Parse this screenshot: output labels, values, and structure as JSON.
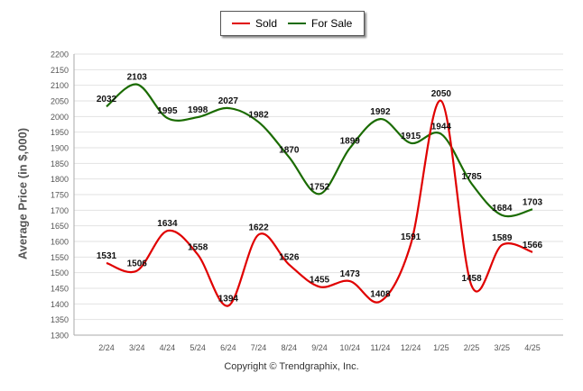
{
  "chart_data": {
    "type": "line",
    "categories": [
      "2/24",
      "3/24",
      "4/24",
      "5/24",
      "6/24",
      "7/24",
      "8/24",
      "9/24",
      "10/24",
      "11/24",
      "12/24",
      "1/25",
      "2/25",
      "3/25",
      "4/25"
    ],
    "series": [
      {
        "name": "Sold",
        "color": "#e00000",
        "values": [
          1531,
          1506,
          1634,
          1558,
          1394,
          1622,
          1526,
          1455,
          1473,
          1408,
          1591,
          2050,
          1458,
          1589,
          1566
        ]
      },
      {
        "name": "For Sale",
        "color": "#1a6b00",
        "values": [
          2032,
          2103,
          1995,
          1998,
          2027,
          1982,
          1870,
          1752,
          1899,
          1992,
          1915,
          1944,
          1785,
          1684,
          1703
        ]
      }
    ],
    "ylabel": "Average Price (in $,000)",
    "ylim": [
      1300,
      2200
    ],
    "yticks": [
      1300,
      1350,
      1400,
      1450,
      1500,
      1550,
      1600,
      1650,
      1700,
      1750,
      1800,
      1850,
      1900,
      1950,
      2000,
      2050,
      2100,
      2150,
      2200
    ],
    "grid": true,
    "legend_position": "top-center"
  },
  "legend": {
    "sold": "Sold",
    "for_sale": "For Sale"
  },
  "footer": {
    "copyright": "Copyright © Trendgraphix, Inc."
  }
}
